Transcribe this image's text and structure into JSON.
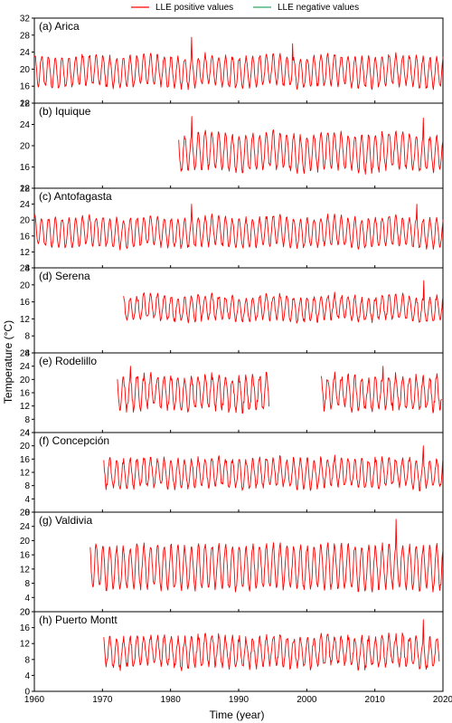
{
  "legend": {
    "position": "top-center",
    "items": [
      {
        "label": "LLE positive values",
        "color": "#ff0000"
      },
      {
        "label": "LLE negative values",
        "color": "#2eaa66"
      }
    ]
  },
  "xlabel": "Time (year)",
  "ylabel": "Temperature (°C)",
  "chart_data": [
    {
      "type": "line",
      "title": "(a) Arica",
      "xlim": [
        1960,
        2020
      ],
      "ylim": [
        12,
        32
      ],
      "yticks": [
        12,
        16,
        20,
        24,
        28,
        32
      ],
      "x_start": 1960,
      "x_end": 2020,
      "mean": 19.5,
      "amplitude": 3.5,
      "noise": 0.6,
      "gaps": [],
      "spikes": [
        {
          "year": 1983.1,
          "value": 27.5
        },
        {
          "year": 1997.9,
          "value": 26.0
        }
      ]
    },
    {
      "type": "line",
      "title": "(b) Iquique",
      "xlim": [
        1960,
        2020
      ],
      "ylim": [
        12,
        28
      ],
      "yticks": [
        12,
        16,
        20,
        24,
        28
      ],
      "x_start": 1981.2,
      "x_end": 2020,
      "mean": 18.8,
      "amplitude": 3.3,
      "noise": 0.6,
      "gaps": [],
      "spikes": [
        {
          "year": 1983.1,
          "value": 25.5
        },
        {
          "year": 2017.1,
          "value": 25.2
        }
      ]
    },
    {
      "type": "line",
      "title": "(c) Antofagasta",
      "xlim": [
        1960,
        2020
      ],
      "ylim": [
        8,
        28
      ],
      "yticks": [
        8,
        12,
        16,
        20,
        24,
        28
      ],
      "x_start": 1960,
      "x_end": 2020,
      "mean": 17.0,
      "amplitude": 3.6,
      "noise": 0.6,
      "gaps": [],
      "spikes": [
        {
          "year": 1983.1,
          "value": 24.0
        },
        {
          "year": 2016.2,
          "value": 24.0
        }
      ]
    },
    {
      "type": "line",
      "title": "(d) Serena",
      "xlim": [
        1960,
        2020
      ],
      "ylim": [
        4,
        24
      ],
      "yticks": [
        4,
        8,
        12,
        16,
        20,
        24
      ],
      "x_start": 1973.1,
      "x_end": 2020,
      "mean": 14.5,
      "amplitude": 2.8,
      "noise": 0.7,
      "gaps": [],
      "spikes": [
        {
          "year": 2017.2,
          "value": 21.0
        }
      ]
    },
    {
      "type": "line",
      "title": "(e) Rodelillo",
      "xlim": [
        1960,
        2020
      ],
      "ylim": [
        4,
        28
      ],
      "yticks": [
        4,
        8,
        12,
        16,
        20,
        24,
        28
      ],
      "x_start": 1972.2,
      "x_end": 2019.8,
      "mean": 16.0,
      "amplitude": 4.8,
      "noise": 1.3,
      "gaps": [
        [
          1994.5,
          2002.1
        ]
      ],
      "spikes": [
        {
          "year": 1974.1,
          "value": 24.0
        },
        {
          "year": 2011.2,
          "value": 24.0
        }
      ]
    },
    {
      "type": "line",
      "title": "(f) Concepción",
      "xlim": [
        1960,
        2020
      ],
      "ylim": [
        0,
        24
      ],
      "yticks": [
        0,
        4,
        8,
        12,
        16,
        20,
        24
      ],
      "x_start": 1970.2,
      "x_end": 2020,
      "mean": 11.8,
      "amplitude": 4.2,
      "noise": 1.0,
      "gaps": [],
      "spikes": [
        {
          "year": 2017.1,
          "value": 20.0
        }
      ]
    },
    {
      "type": "line",
      "title": "(g) Valdivia",
      "xlim": [
        1960,
        2020
      ],
      "ylim": [
        0,
        28
      ],
      "yticks": [
        0,
        4,
        8,
        12,
        16,
        20,
        24,
        28
      ],
      "x_start": 1968.2,
      "x_end": 2020,
      "mean": 12.5,
      "amplitude": 6.0,
      "noise": 1.0,
      "gaps": [],
      "spikes": [
        {
          "year": 2013.1,
          "value": 26.0
        }
      ]
    },
    {
      "type": "line",
      "title": "(h) Puerto Montt",
      "xlim": [
        1960,
        2020
      ],
      "ylim": [
        0,
        20
      ],
      "yticks": [
        0,
        4,
        8,
        12,
        16,
        20
      ],
      "x_start": 1970.2,
      "x_end": 2019.5,
      "mean": 10.0,
      "amplitude": 3.6,
      "noise": 1.0,
      "gaps": [],
      "spikes": [
        {
          "year": 2017.1,
          "value": 18.0
        }
      ]
    }
  ],
  "xticks": [
    1960,
    1970,
    1980,
    1990,
    2000,
    2010,
    2020
  ]
}
